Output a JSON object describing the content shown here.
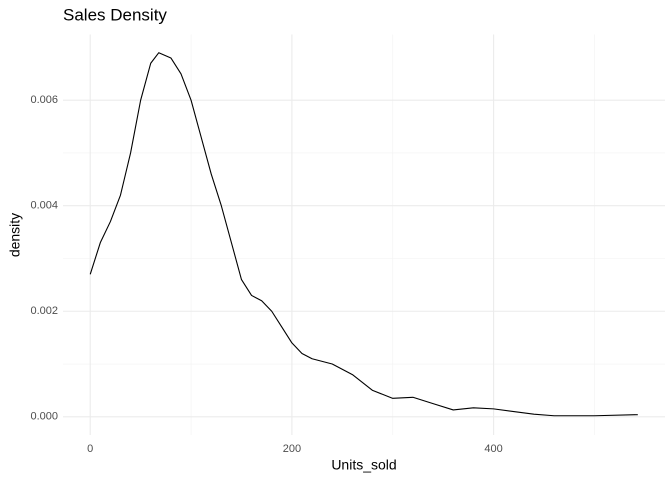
{
  "chart_data": {
    "type": "line",
    "title": "Sales Density",
    "x_label": "Units_sold",
    "y_label": "density",
    "x": [
      0,
      10,
      20,
      30,
      40,
      50,
      60,
      68,
      80,
      90,
      100,
      110,
      120,
      130,
      140,
      150,
      160,
      170,
      180,
      190,
      200,
      210,
      220,
      240,
      260,
      280,
      300,
      320,
      340,
      360,
      380,
      400,
      420,
      440,
      460,
      500,
      543
    ],
    "series": [
      {
        "name": "density",
        "color": "#000000",
        "values": [
          0.0027,
          0.0033,
          0.0037,
          0.0042,
          0.005,
          0.006,
          0.0067,
          0.0069,
          0.0068,
          0.0065,
          0.006,
          0.0053,
          0.0046,
          0.004,
          0.0033,
          0.0026,
          0.0023,
          0.0022,
          0.002,
          0.0017,
          0.0014,
          0.0012,
          0.0011,
          0.001,
          0.0008,
          0.0005,
          0.00035,
          0.00037,
          0.00025,
          0.00013,
          0.00017,
          0.00015,
          0.0001,
          5e-05,
          2e-05,
          2e-05,
          4e-05
        ]
      }
    ],
    "xlim": [
      -27,
      570
    ],
    "ylim": [
      -0.000345,
      0.007245
    ],
    "xticks": [
      0,
      200,
      400
    ],
    "yticks": [
      {
        "value": 0,
        "label": "0.000"
      },
      {
        "value": 0.002,
        "label": "0.002"
      },
      {
        "value": 0.004,
        "label": "0.004"
      },
      {
        "value": 0.006,
        "label": "0.006"
      }
    ],
    "xminor": [
      100,
      300,
      500
    ],
    "yminor": [
      0.001,
      0.003,
      0.005
    ],
    "grid": true
  }
}
